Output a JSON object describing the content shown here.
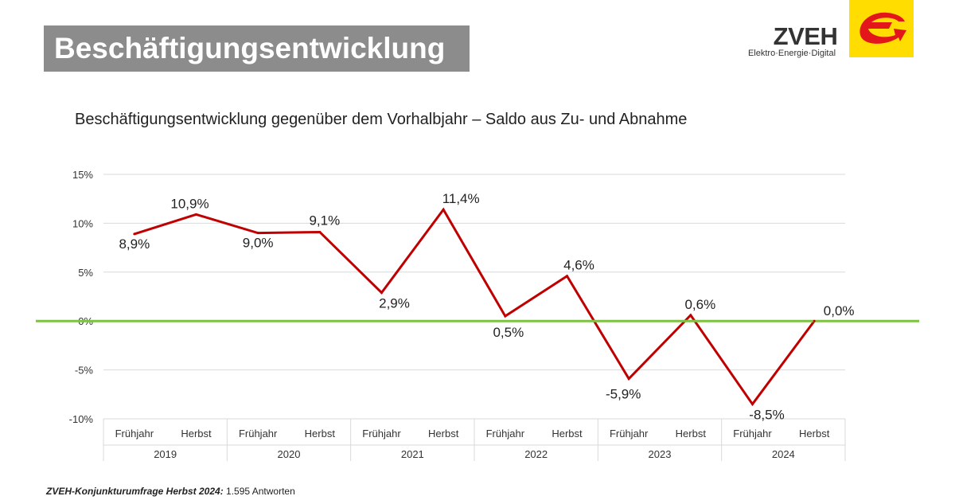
{
  "header": {
    "title": "Beschäftigungsentwicklung",
    "logo_text": "ZVEH",
    "logo_tagline": "Elektro·Energie·Digital",
    "logo_color": "#ffdd00",
    "logo_accent": "#e3161b"
  },
  "chart_data": {
    "type": "line",
    "title": "Beschäftigungsentwicklung gegenüber dem Vorhalbjahr – Saldo aus Zu- und Abnahme",
    "ylim": [
      -10,
      15
    ],
    "y_ticks": [
      15,
      10,
      5,
      0,
      -5,
      -10
    ],
    "y_tick_labels": [
      "15%",
      "10%",
      "5%",
      "0%",
      "-5%",
      "-10%"
    ],
    "grid": true,
    "x_categories": [
      "Frühjahr",
      "Herbst",
      "Frühjahr",
      "Herbst",
      "Frühjahr",
      "Herbst",
      "Frühjahr",
      "Herbst",
      "Frühjahr",
      "Herbst",
      "Frühjahr",
      "Herbst"
    ],
    "x_groups": [
      "2019",
      "2020",
      "2021",
      "2022",
      "2023",
      "2024"
    ],
    "series": [
      {
        "values": [
          8.9,
          10.9,
          9.0,
          9.1,
          2.9,
          11.4,
          0.5,
          4.6,
          -5.9,
          0.6,
          -8.5,
          0.0
        ],
        "labels": [
          "8,9%",
          "10,9%",
          "9,0%",
          "9,1%",
          "2,9%",
          "11,4%",
          "0,5%",
          "4,6%",
          "-5,9%",
          "0,6%",
          "-8,5%",
          "0,0%"
        ],
        "color": "#c00000"
      }
    ],
    "reference_line": {
      "value": 0,
      "color": "#7dc242"
    }
  },
  "footer": {
    "source_bold": "ZVEH-Konjunkturumfrage Herbst 2024:",
    "source_text": " 1.595 Antworten"
  }
}
